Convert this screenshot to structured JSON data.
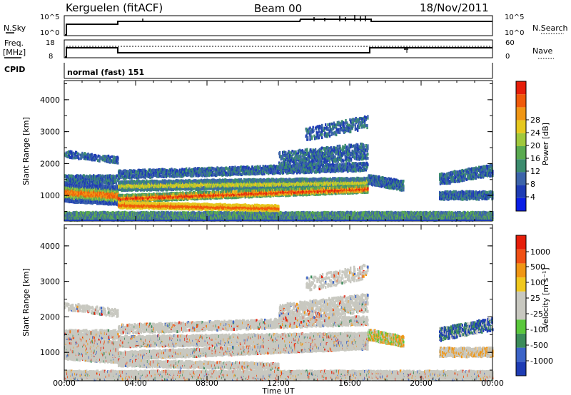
{
  "header": {
    "station": "Kerguelen (fitACF)",
    "beam": "Beam 00",
    "date": "18/Nov/2011"
  },
  "panels": {
    "nsky": {
      "left_label": "N.Sky",
      "right_label": "N.Search",
      "left_ticks": [
        "10^5",
        "10^0"
      ],
      "right_ticks": [
        "10^5",
        "10^0"
      ]
    },
    "freq": {
      "left_label_1": "Freq.",
      "left_label_2": "[MHz]",
      "right_label": "Nave",
      "left_ticks": [
        "18",
        "8"
      ],
      "right_ticks": [
        "60",
        "0"
      ]
    },
    "cpid": {
      "label": "CPID",
      "text": "normal (fast) 151"
    }
  },
  "chart_data": [
    {
      "type": "heatmap",
      "title": "",
      "xlabel": "",
      "ylabel": "Slant Range [km]",
      "x_ticks": [
        "00:00",
        "04:00",
        "08:00",
        "12:00",
        "16:00",
        "20:00",
        "00:00"
      ],
      "y_ticks": [
        1000,
        2000,
        3000,
        4000
      ],
      "ylim": [
        200,
        4600
      ],
      "colorbar": {
        "label": "Power [dB]",
        "ticks": [
          4,
          8,
          12,
          16,
          20,
          24,
          28
        ],
        "colors": [
          "#0a1ee6",
          "#1e3cb4",
          "#3c64aa",
          "#3c8c6e",
          "#5aaa50",
          "#a0c83c",
          "#e6c81e",
          "#f09614",
          "#f05a0a",
          "#e61e0a"
        ]
      }
    },
    {
      "type": "heatmap",
      "title": "",
      "xlabel": "Time UT",
      "ylabel": "Slant Range [km]",
      "x_ticks": [
        "00:00",
        "04:00",
        "08:00",
        "12:00",
        "16:00",
        "20:00",
        "00:00"
      ],
      "y_ticks": [
        1000,
        2000,
        3000,
        4000
      ],
      "ylim": [
        200,
        4600
      ],
      "colorbar": {
        "label": "Velocity [m s⁻¹]",
        "ticks": [
          "1000",
          "500",
          "100",
          "25",
          "-25",
          "-100",
          "-500",
          "-1000"
        ],
        "colors": [
          "#1e3cb4",
          "#3c64c8",
          "#3c8c5a",
          "#5ac83c",
          "#c8c8c0",
          "#c8c8c0",
          "#f0c81e",
          "#f09614",
          "#f05014",
          "#e61e0a"
        ]
      }
    }
  ]
}
